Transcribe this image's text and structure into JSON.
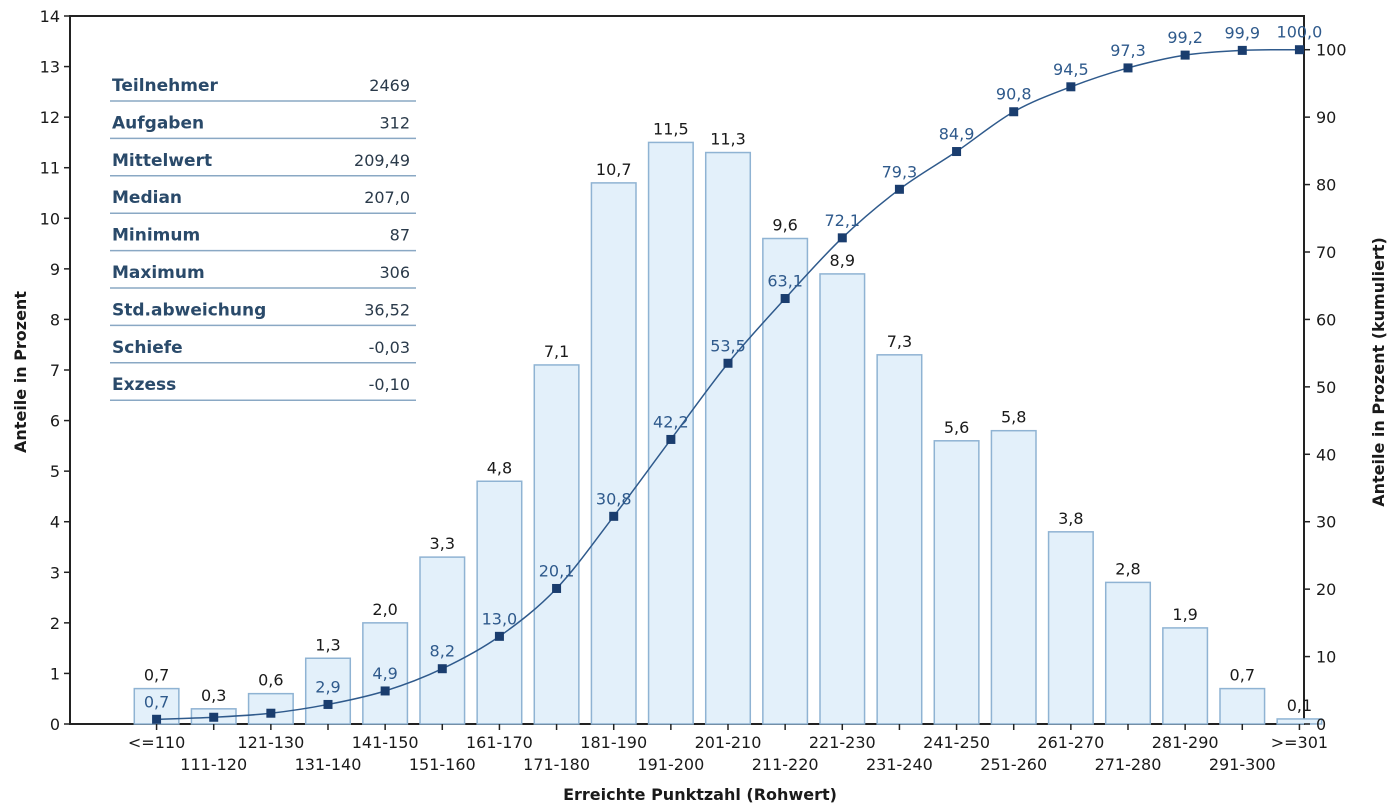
{
  "chart_data": {
    "type": "bar",
    "categories": [
      "<=110",
      "111-120",
      "121-130",
      "131-140",
      "141-150",
      "151-160",
      "161-170",
      "171-180",
      "181-190",
      "191-200",
      "201-210",
      "211-220",
      "221-230",
      "231-240",
      "241-250",
      "251-260",
      "261-270",
      "271-280",
      "281-290",
      "291-300",
      ">=301"
    ],
    "category_labels": [
      "<=110",
      "111-120",
      "121-130",
      "131-140",
      "141-150",
      "151-160",
      "161-170",
      "171-180",
      "181-190",
      "191-200",
      "201-210",
      "211-220",
      "221-230",
      "231-240",
      "241-250",
      "251-260",
      "261-270",
      "271-280",
      "281-290",
      "291-300",
      ">=301"
    ],
    "series": [
      {
        "type": "bar",
        "axis": "left",
        "values": [
          0.7,
          0.3,
          0.6,
          1.3,
          2.0,
          3.3,
          4.8,
          7.1,
          10.7,
          11.5,
          11.3,
          9.6,
          8.9,
          7.3,
          5.6,
          5.8,
          3.8,
          2.8,
          1.9,
          0.7,
          0.1
        ],
        "labels": [
          "0,7",
          "0,3",
          "0,6",
          "1,3",
          "2,0",
          "3,3",
          "4,8",
          "7,1",
          "10,7",
          "11,5",
          "11,3",
          "9,6",
          "8,9",
          "7,3",
          "5,6",
          "5,8",
          "3,8",
          "2,8",
          "1,9",
          "0,7",
          "0,1"
        ]
      },
      {
        "type": "line",
        "axis": "right",
        "values": [
          0.7,
          1.0,
          1.6,
          2.9,
          4.9,
          8.2,
          13.0,
          20.1,
          30.8,
          42.2,
          53.5,
          63.1,
          72.1,
          79.3,
          84.9,
          90.8,
          94.5,
          97.3,
          99.2,
          99.9,
          100.0
        ],
        "labels": [
          "0,7",
          "",
          "",
          "2,9",
          "4,9",
          "8,2",
          "13,0",
          "20,1",
          "30,8",
          "42,2",
          "53,5",
          "63,1",
          "72,1",
          "79,3",
          "84,9",
          "90,8",
          "94,5",
          "97,3",
          "99,2",
          "99,9",
          "100,0"
        ]
      }
    ],
    "xlabel": "Erreichte Punktzahl (Rohwert)",
    "ylabel": "Anteile in Prozent",
    "y2label": "Anteile in Prozent (kumuliert)",
    "ylim": [
      0,
      14
    ],
    "y2lim": [
      0,
      105
    ],
    "yticks": [
      0,
      1,
      2,
      3,
      4,
      5,
      6,
      7,
      8,
      9,
      10,
      11,
      12,
      13,
      14
    ],
    "y2ticks": [
      0,
      10,
      20,
      30,
      40,
      50,
      60,
      70,
      80,
      90,
      100
    ],
    "grid": false,
    "colors": {
      "bar_fill": "#e3f0fa",
      "bar_stroke": "#8fb3d3",
      "line": "#2f5a8c",
      "marker": "#1a3d6e",
      "cum_label": "#2f5a8c",
      "stats_key": "#2a4a6a"
    }
  },
  "stats": [
    {
      "label": "Teilnehmer",
      "value": "2469"
    },
    {
      "label": "Aufgaben",
      "value": "312"
    },
    {
      "label": "Mittelwert",
      "value": "209,49"
    },
    {
      "label": "Median",
      "value": "207,0"
    },
    {
      "label": "Minimum",
      "value": "87"
    },
    {
      "label": "Maximum",
      "value": "306"
    },
    {
      "label": "Std.abweichung",
      "value": "36,52"
    },
    {
      "label": "Schiefe",
      "value": "-0,03"
    },
    {
      "label": "Exzess",
      "value": "-0,10"
    }
  ]
}
